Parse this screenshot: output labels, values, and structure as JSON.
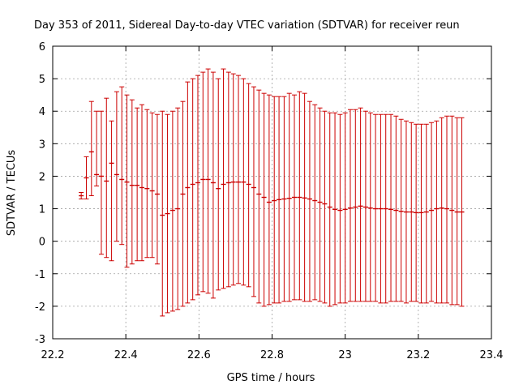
{
  "chart_data": {
    "type": "errorbar",
    "title": "Day 353 of 2011, Sidereal Day-to-day VTEC variation (SDTVAR) for receiver reun",
    "xlabel": "GPS time / hours",
    "ylabel": "SDTVAR / TECUs",
    "xlim": [
      22.2,
      23.4
    ],
    "ylim": [
      -3,
      6
    ],
    "x_ticks": [
      "22.2",
      "22.4",
      "22.6",
      "22.8",
      "23",
      "23.2",
      "23.4"
    ],
    "y_ticks": [
      "-3",
      "-2",
      "-1",
      "0",
      "1",
      "2",
      "3",
      "4",
      "5",
      "6"
    ],
    "grid": true,
    "color": "#cc0000",
    "series": [
      {
        "name": "SDTVAR",
        "x": [
          22.278,
          22.292,
          22.306,
          22.32,
          22.333,
          22.347,
          22.361,
          22.375,
          22.389,
          22.403,
          22.417,
          22.431,
          22.444,
          22.458,
          22.472,
          22.486,
          22.5,
          22.514,
          22.528,
          22.542,
          22.556,
          22.569,
          22.583,
          22.597,
          22.611,
          22.625,
          22.639,
          22.653,
          22.667,
          22.681,
          22.694,
          22.708,
          22.722,
          22.736,
          22.75,
          22.764,
          22.778,
          22.792,
          22.806,
          22.819,
          22.833,
          22.847,
          22.861,
          22.875,
          22.889,
          22.903,
          22.917,
          22.931,
          22.944,
          22.958,
          22.972,
          22.986,
          23.0,
          23.014,
          23.028,
          23.042,
          23.056,
          23.069,
          23.083,
          23.097,
          23.111,
          23.125,
          23.139,
          23.153,
          23.167,
          23.181,
          23.194,
          23.208,
          23.222,
          23.236,
          23.25,
          23.264,
          23.278,
          23.292,
          23.306,
          23.319
        ],
        "y": [
          1.4,
          1.95,
          2.75,
          2.05,
          2.0,
          1.85,
          2.4,
          2.05,
          1.9,
          1.82,
          1.72,
          1.72,
          1.65,
          1.62,
          1.55,
          1.45,
          0.8,
          0.85,
          0.95,
          1.0,
          1.45,
          1.65,
          1.75,
          1.8,
          1.9,
          1.9,
          1.8,
          1.62,
          1.75,
          1.8,
          1.82,
          1.82,
          1.82,
          1.75,
          1.65,
          1.45,
          1.35,
          1.2,
          1.25,
          1.28,
          1.3,
          1.32,
          1.35,
          1.35,
          1.33,
          1.3,
          1.25,
          1.2,
          1.15,
          1.05,
          0.98,
          0.95,
          0.98,
          1.02,
          1.05,
          1.08,
          1.05,
          1.02,
          1.0,
          1.0,
          1.0,
          0.98,
          0.95,
          0.92,
          0.9,
          0.9,
          0.88,
          0.88,
          0.9,
          0.95,
          1.0,
          1.02,
          1.0,
          0.95,
          0.9,
          0.9
        ],
        "ylow": [
          1.3,
          1.3,
          1.4,
          1.7,
          -0.4,
          -0.5,
          -0.6,
          0.0,
          -0.1,
          -0.8,
          -0.7,
          -0.6,
          -0.6,
          -0.5,
          -0.5,
          -0.7,
          -2.3,
          -2.2,
          -2.15,
          -2.1,
          -2.0,
          -1.9,
          -1.8,
          -1.65,
          -1.55,
          -1.6,
          -1.75,
          -1.5,
          -1.45,
          -1.4,
          -1.35,
          -1.3,
          -1.35,
          -1.4,
          -1.7,
          -1.9,
          -2.0,
          -1.95,
          -1.9,
          -1.9,
          -1.85,
          -1.85,
          -1.8,
          -1.8,
          -1.85,
          -1.85,
          -1.8,
          -1.85,
          -1.9,
          -2.0,
          -1.95,
          -1.9,
          -1.9,
          -1.85,
          -1.85,
          -1.85,
          -1.85,
          -1.85,
          -1.85,
          -1.9,
          -1.9,
          -1.85,
          -1.85,
          -1.85,
          -1.9,
          -1.85,
          -1.85,
          -1.9,
          -1.9,
          -1.85,
          -1.9,
          -1.9,
          -1.9,
          -1.95,
          -1.95,
          -2.0
        ],
        "yhigh": [
          1.5,
          2.6,
          4.3,
          4.0,
          4.0,
          4.4,
          3.7,
          4.6,
          4.75,
          4.5,
          4.35,
          4.1,
          4.2,
          4.05,
          3.95,
          3.9,
          4.0,
          3.9,
          4.0,
          4.1,
          4.3,
          4.9,
          5.0,
          5.1,
          5.2,
          5.3,
          5.2,
          5.0,
          5.3,
          5.2,
          5.15,
          5.1,
          5.0,
          4.85,
          4.75,
          4.65,
          4.55,
          4.5,
          4.45,
          4.45,
          4.45,
          4.55,
          4.5,
          4.6,
          4.55,
          4.3,
          4.2,
          4.1,
          4.0,
          3.95,
          3.95,
          3.9,
          3.95,
          4.05,
          4.05,
          4.1,
          4.0,
          3.95,
          3.9,
          3.9,
          3.9,
          3.9,
          3.85,
          3.75,
          3.7,
          3.65,
          3.6,
          3.6,
          3.6,
          3.65,
          3.7,
          3.8,
          3.85,
          3.85,
          3.8,
          3.8
        ]
      }
    ]
  }
}
